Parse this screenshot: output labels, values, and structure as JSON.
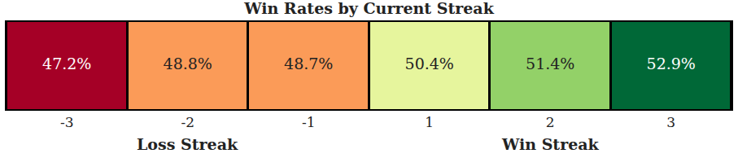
{
  "chart_data": {
    "type": "heatmap",
    "title": "Win Rates by Current Streak",
    "categories": [
      "-3",
      "-2",
      "-1",
      "1",
      "2",
      "3"
    ],
    "values": [
      47.2,
      48.8,
      48.7,
      50.4,
      51.4,
      52.9
    ],
    "value_labels": [
      "47.2%",
      "48.8%",
      "48.7%",
      "50.4%",
      "51.4%",
      "52.9%"
    ],
    "colors": [
      "#a50026",
      "#fb9b58",
      "#fb9b58",
      "#e6f59d",
      "#93d168",
      "#006837"
    ],
    "data_labels": true,
    "tick_labels": "x",
    "annotations": [
      {
        "text": "Loss Streak",
        "x": "-2"
      },
      {
        "text": "Win Streak",
        "x": "2"
      }
    ]
  }
}
